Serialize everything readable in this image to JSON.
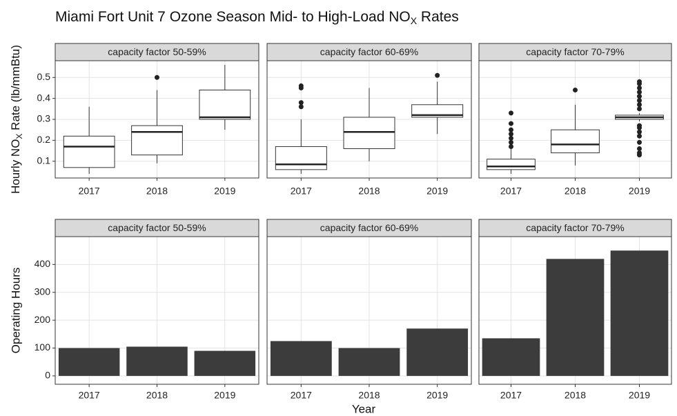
{
  "chart_data": [
    {
      "type": "box",
      "title": {
        "text": "Miami Fort Unit 7 Ozone Season Mid- to High-Load NO",
        "sub": "X",
        "after": " Rates"
      },
      "ylabel": {
        "text": "Hourly NO",
        "sub": "X",
        "after": " Rate (lb/mmBtu)"
      },
      "ylim": [
        0.02,
        0.58
      ],
      "yticks": [
        0.1,
        0.2,
        0.3,
        0.4,
        0.5
      ],
      "grid": true,
      "color": "#ffffff",
      "panels": [
        {
          "label": "capacity factor 50-59%",
          "categories": [
            "2017",
            "2018",
            "2019"
          ],
          "boxes": [
            {
              "low": 0.04,
              "q1": 0.07,
              "median": 0.17,
              "q3": 0.22,
              "high": 0.36,
              "outliers": []
            },
            {
              "low": 0.09,
              "q1": 0.13,
              "median": 0.24,
              "q3": 0.27,
              "high": 0.44,
              "outliers": [
                0.5
              ]
            },
            {
              "low": 0.25,
              "q1": 0.3,
              "median": 0.31,
              "q3": 0.44,
              "high": 0.56,
              "outliers": []
            }
          ]
        },
        {
          "label": "capacity factor 60-69%",
          "categories": [
            "2017",
            "2018",
            "2019"
          ],
          "boxes": [
            {
              "low": 0.04,
              "q1": 0.06,
              "median": 0.085,
              "q3": 0.17,
              "high": 0.3,
              "outliers": [
                0.36,
                0.38,
                0.45,
                0.46
              ]
            },
            {
              "low": 0.1,
              "q1": 0.16,
              "median": 0.24,
              "q3": 0.31,
              "high": 0.45,
              "outliers": []
            },
            {
              "low": 0.23,
              "q1": 0.31,
              "median": 0.32,
              "q3": 0.37,
              "high": 0.48,
              "outliers": [
                0.51
              ]
            }
          ]
        },
        {
          "label": "capacity factor 70-79%",
          "categories": [
            "2017",
            "2018",
            "2019"
          ],
          "boxes": [
            {
              "low": 0.04,
              "q1": 0.06,
              "median": 0.075,
              "q3": 0.11,
              "high": 0.16,
              "outliers": [
                0.17,
                0.19,
                0.21,
                0.23,
                0.25,
                0.28,
                0.33
              ]
            },
            {
              "low": 0.08,
              "q1": 0.14,
              "median": 0.18,
              "q3": 0.25,
              "high": 0.37,
              "outliers": [
                0.44
              ]
            },
            {
              "low": 0.29,
              "q1": 0.3,
              "median": 0.31,
              "q3": 0.32,
              "high": 0.33,
              "outliers": [
                0.13,
                0.14,
                0.16,
                0.19,
                0.22,
                0.24,
                0.26,
                0.27,
                0.35,
                0.37,
                0.39,
                0.41,
                0.43,
                0.45,
                0.47,
                0.48
              ]
            }
          ]
        }
      ]
    },
    {
      "type": "bar",
      "ylabel": {
        "text": "Operating Hours"
      },
      "xlabel": "Year",
      "ylim": [
        -30,
        500
      ],
      "yticks": [
        0,
        100,
        200,
        300,
        400
      ],
      "grid": true,
      "color": "#3c3c3c",
      "panels": [
        {
          "label": "capacity factor 50-59%",
          "categories": [
            "2017",
            "2018",
            "2019"
          ],
          "values": [
            100,
            105,
            90
          ]
        },
        {
          "label": "capacity factor 60-69%",
          "categories": [
            "2017",
            "2018",
            "2019"
          ],
          "values": [
            125,
            100,
            170
          ]
        },
        {
          "label": "capacity factor 70-79%",
          "categories": [
            "2017",
            "2018",
            "2019"
          ],
          "values": [
            135,
            420,
            450
          ]
        }
      ]
    }
  ]
}
